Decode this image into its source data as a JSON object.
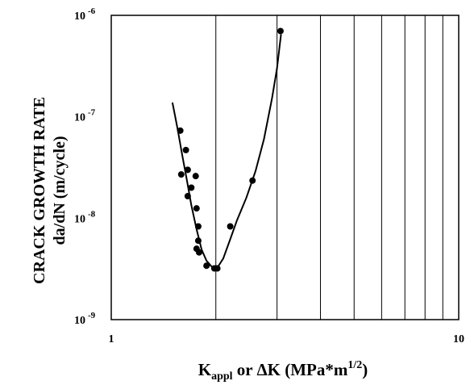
{
  "chart_data": {
    "type": "scatter",
    "title": "",
    "xlabel_main": "K",
    "xlabel_sub": "appl",
    "xlabel_rest": " or ΔK (MPa*m",
    "xlabel_sup": "1/2",
    "xlabel_close": ")",
    "ylabel_line1": "CRACK GROWTH RATE",
    "ylabel_line2": "da/dN (m/cycle)",
    "xscale": "log",
    "yscale": "log",
    "xlim": [
      1,
      10
    ],
    "ylim": [
      1e-09,
      1e-06
    ],
    "x_gridlines": [
      2,
      3,
      4,
      5,
      6,
      7,
      8,
      9
    ],
    "y_gridlines": false,
    "x_ticks": [
      {
        "value": 1,
        "label": "1"
      },
      {
        "value": 10,
        "label": "10"
      }
    ],
    "y_ticks": [
      {
        "value": 1e-09,
        "base": "10",
        "exp": "-9"
      },
      {
        "value": 1e-08,
        "base": "10",
        "exp": "-8"
      },
      {
        "value": 1e-07,
        "base": "10",
        "exp": "-7"
      },
      {
        "value": 1e-06,
        "base": "10",
        "exp": "-6"
      }
    ],
    "series": [
      {
        "style": "points",
        "color": "#000000",
        "points": [
          {
            "x": 1.58,
            "y": 7.3e-08
          },
          {
            "x": 1.64,
            "y": 4.7e-08
          },
          {
            "x": 1.59,
            "y": 2.7e-08
          },
          {
            "x": 1.66,
            "y": 3e-08
          },
          {
            "x": 1.66,
            "y": 1.65e-08
          },
          {
            "x": 1.7,
            "y": 2e-08
          },
          {
            "x": 1.75,
            "y": 2.6e-08
          },
          {
            "x": 1.76,
            "y": 1.25e-08
          },
          {
            "x": 1.78,
            "y": 8.3e-09
          },
          {
            "x": 1.78,
            "y": 6e-09
          },
          {
            "x": 1.76,
            "y": 5e-09
          },
          {
            "x": 1.79,
            "y": 4.6e-09
          },
          {
            "x": 1.88,
            "y": 3.4e-09
          },
          {
            "x": 1.98,
            "y": 3.2e-09
          },
          {
            "x": 2.02,
            "y": 3.2e-09
          },
          {
            "x": 2.2,
            "y": 8.3e-09
          },
          {
            "x": 2.55,
            "y": 2.35e-08
          },
          {
            "x": 3.07,
            "y": 7e-07
          }
        ]
      },
      {
        "style": "curve",
        "color": "#000000",
        "points": [
          {
            "x": 1.5,
            "y": 1.38e-07
          },
          {
            "x": 1.55,
            "y": 7.8e-08
          },
          {
            "x": 1.6,
            "y": 4.2e-08
          },
          {
            "x": 1.65,
            "y": 2.4e-08
          },
          {
            "x": 1.7,
            "y": 1.35e-08
          },
          {
            "x": 1.76,
            "y": 7.8e-09
          },
          {
            "x": 1.82,
            "y": 4.9e-09
          },
          {
            "x": 1.88,
            "y": 3.8e-09
          },
          {
            "x": 1.95,
            "y": 3.3e-09
          },
          {
            "x": 2.02,
            "y": 3.25e-09
          },
          {
            "x": 2.1,
            "y": 4e-09
          },
          {
            "x": 2.2,
            "y": 6.2e-09
          },
          {
            "x": 2.3,
            "y": 9.5e-09
          },
          {
            "x": 2.45,
            "y": 1.6e-08
          },
          {
            "x": 2.6,
            "y": 2.9e-08
          },
          {
            "x": 2.75,
            "y": 6e-08
          },
          {
            "x": 2.9,
            "y": 1.5e-07
          },
          {
            "x": 3.0,
            "y": 3e-07
          },
          {
            "x": 3.08,
            "y": 6.5e-07
          }
        ]
      }
    ]
  }
}
